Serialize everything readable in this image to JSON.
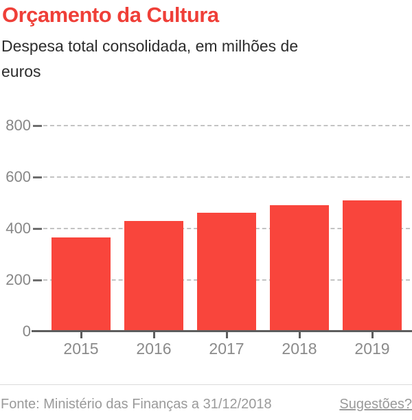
{
  "header": {
    "title": "Orçamento da Cultura",
    "subtitle_line1": "Despesa total consolidada, em milhões de",
    "subtitle_line2": "euros"
  },
  "chart_data": {
    "type": "bar",
    "title": "Orçamento da Cultura",
    "subtitle": "Despesa total consolidada, em milhões de euros",
    "categories": [
      "2015",
      "2016",
      "2017",
      "2018",
      "2019"
    ],
    "values": [
      360,
      425,
      456,
      485,
      505
    ],
    "xlabel": "",
    "ylabel": "",
    "y_ticks": [
      0,
      200,
      400,
      600,
      800
    ],
    "ylim": [
      0,
      880
    ],
    "grid": "horizontal-dashed",
    "legend": "none",
    "bar_color": "#f9453c"
  },
  "colors": {
    "title_red": "#ef3f38",
    "bar_red": "#f9453c",
    "axis_dark": "#5d5d5d",
    "tick_gray": "#6e6e6e",
    "grid_gray": "#c3c3c3",
    "axis_label_gray": "#878787",
    "x_label_gray": "#8a8a8a",
    "subtitle_dark": "#2d2d2d",
    "footer_gray": "#9a9a9a",
    "divider_gray": "#dadada"
  },
  "footer": {
    "source": "Fonte: Ministério das Finanças a 31/12/2018",
    "link": "Sugestões?"
  }
}
